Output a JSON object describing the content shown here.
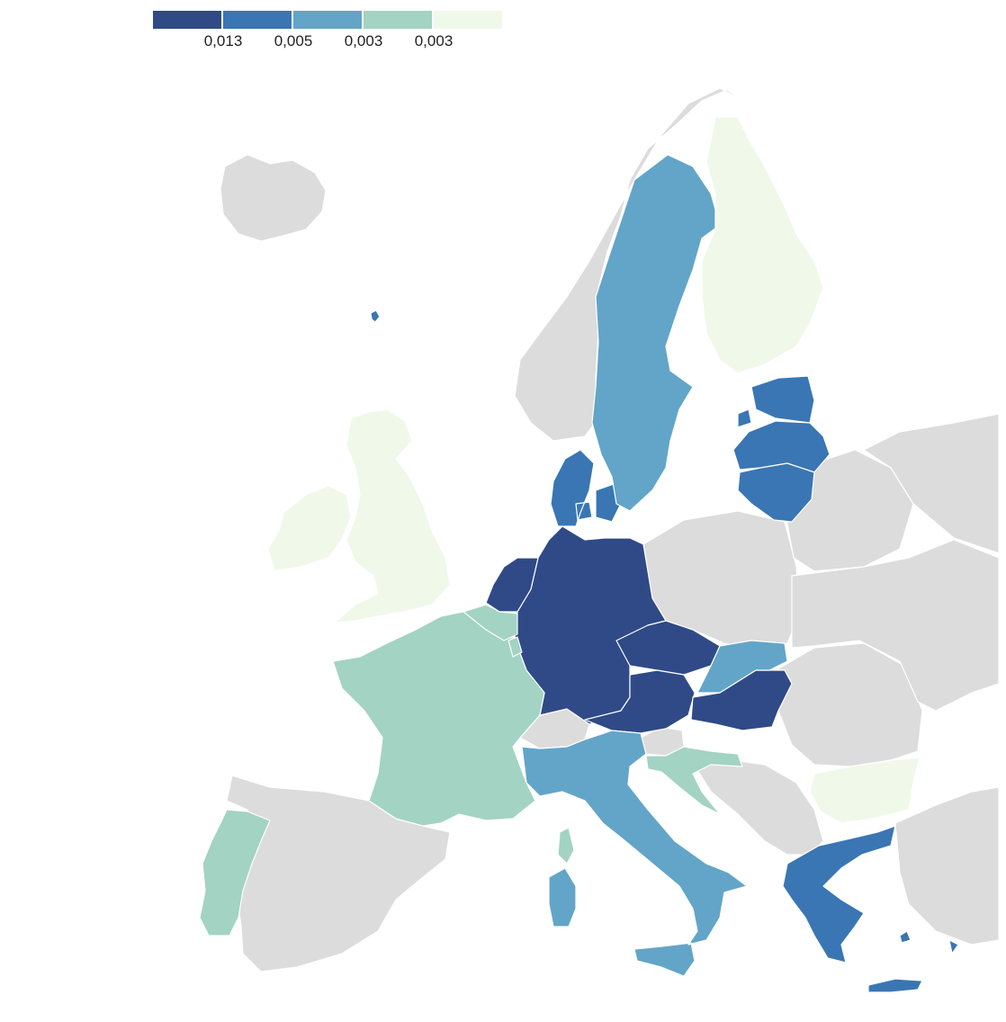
{
  "legend": {
    "colors": [
      "#2f4a87",
      "#3a76b3",
      "#62a5c8",
      "#a3d3c2",
      "#f0f8ea"
    ],
    "breaks": [
      "0,013",
      "0,005",
      "0,003",
      "0,003"
    ]
  },
  "map": {
    "no_data_color": "#dcdcdc",
    "countries": [
      {
        "name": "Germany",
        "class": 0
      },
      {
        "name": "Netherlands",
        "class": 0
      },
      {
        "name": "Czechia",
        "class": 0
      },
      {
        "name": "Austria",
        "class": 0
      },
      {
        "name": "Hungary",
        "class": 0
      },
      {
        "name": "Denmark",
        "class": 1
      },
      {
        "name": "Latvia",
        "class": 1
      },
      {
        "name": "Lithuania",
        "class": 1
      },
      {
        "name": "Estonia islands",
        "class": 1
      },
      {
        "name": "Greece",
        "class": 1
      },
      {
        "name": "Faroe Islands",
        "class": 1
      },
      {
        "name": "Sweden",
        "class": 2
      },
      {
        "name": "Italy",
        "class": 2
      },
      {
        "name": "Slovakia",
        "class": 2
      },
      {
        "name": "France",
        "class": 3
      },
      {
        "name": "Belgium",
        "class": 3
      },
      {
        "name": "Luxembourg",
        "class": 3
      },
      {
        "name": "Portugal",
        "class": 3
      },
      {
        "name": "Croatia",
        "class": 3
      },
      {
        "name": "Finland",
        "class": 4
      },
      {
        "name": "United Kingdom",
        "class": 4
      },
      {
        "name": "Ireland",
        "class": 4
      },
      {
        "name": "Bulgaria",
        "class": 4
      },
      {
        "name": "Iceland",
        "class": null
      },
      {
        "name": "Norway",
        "class": null
      },
      {
        "name": "Spain",
        "class": null
      },
      {
        "name": "Switzerland",
        "class": null
      },
      {
        "name": "Poland",
        "class": null
      },
      {
        "name": "Slovenia",
        "class": null
      },
      {
        "name": "Balkans",
        "class": null
      },
      {
        "name": "Romania",
        "class": null
      },
      {
        "name": "Belarus",
        "class": null
      },
      {
        "name": "Ukraine",
        "class": null
      },
      {
        "name": "Russia",
        "class": null
      },
      {
        "name": "Turkey",
        "class": null
      }
    ]
  }
}
